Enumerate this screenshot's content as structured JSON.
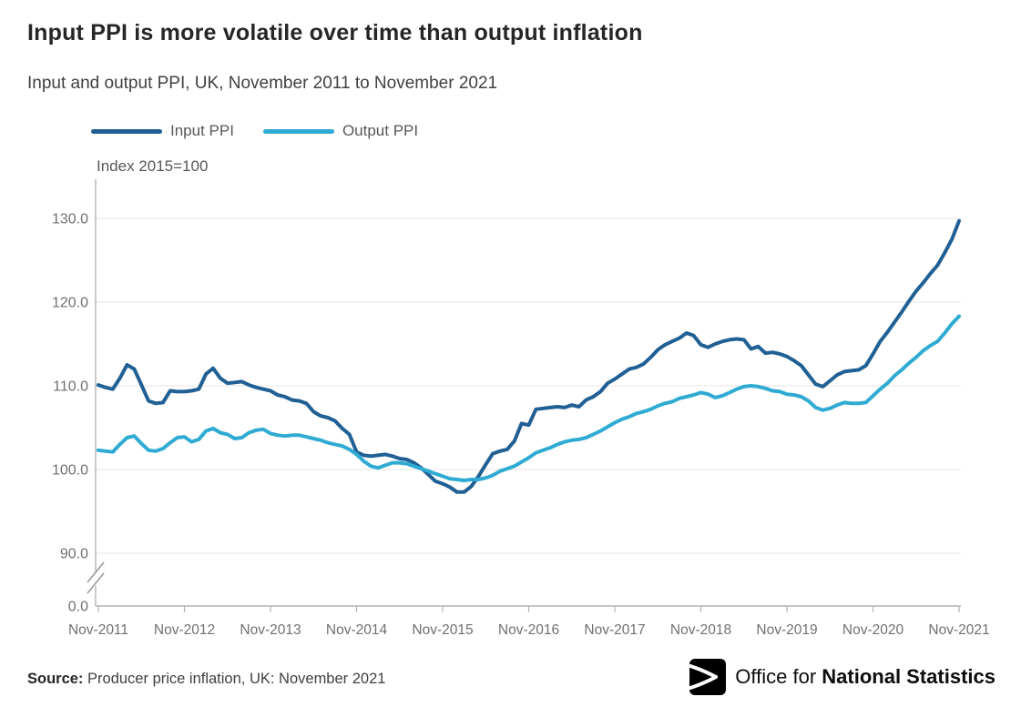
{
  "header": {
    "title": "Input PPI is more volatile over time than output inflation",
    "subtitle": "Input and output PPI, UK, November 2011 to November 2021"
  },
  "legend": {
    "items": [
      {
        "label": "Input PPI"
      },
      {
        "label": "Output PPI"
      }
    ]
  },
  "axis_note": "Index 2015=100",
  "chart_data": {
    "type": "line",
    "title": "Input PPI is more volatile over time than output inflation",
    "subtitle": "Input and output PPI, UK, November 2011 to November 2021",
    "unit_label": "Index 2015=100",
    "x_axis": {
      "start": "Nov-2011",
      "end": "Nov-2021",
      "frequency": "monthly",
      "points": 121,
      "ticks": [
        {
          "label": "Nov-2011",
          "month_index": 0
        },
        {
          "label": "Nov-2012",
          "month_index": 12
        },
        {
          "label": "Nov-2013",
          "month_index": 24
        },
        {
          "label": "Nov-2014",
          "month_index": 36
        },
        {
          "label": "Nov-2015",
          "month_index": 48
        },
        {
          "label": "Nov-2016",
          "month_index": 60
        },
        {
          "label": "Nov-2017",
          "month_index": 72
        },
        {
          "label": "Nov-2018",
          "month_index": 84
        },
        {
          "label": "Nov-2019",
          "month_index": 96
        },
        {
          "label": "Nov-2020",
          "month_index": 108
        },
        {
          "label": "Nov-2021",
          "month_index": 120
        }
      ]
    },
    "y_axis": {
      "ticks": [
        {
          "label": "130.0",
          "value": 130
        },
        {
          "label": "120.0",
          "value": 120
        },
        {
          "label": "110.0",
          "value": 110
        },
        {
          "label": "100.0",
          "value": 100
        },
        {
          "label": "90.0",
          "value": 90
        },
        {
          "label": "0.0",
          "value": 0
        }
      ],
      "gridline_values": [
        130,
        120,
        110,
        100,
        90
      ],
      "visible_range": [
        90,
        135
      ],
      "axis_break": true
    },
    "legend_position": "top-left",
    "grid": "horizontal-only",
    "series": [
      {
        "name": "Input PPI",
        "color": "#206095",
        "values": [
          110.1,
          109.8,
          109.6,
          110.9,
          112.5,
          112.0,
          110.1,
          108.2,
          107.9,
          108.0,
          109.4,
          109.3,
          109.3,
          109.4,
          109.6,
          111.4,
          112.1,
          110.9,
          110.3,
          110.4,
          110.5,
          110.1,
          109.8,
          109.6,
          109.4,
          108.9,
          108.7,
          108.3,
          108.2,
          107.9,
          106.9,
          106.4,
          106.2,
          105.8,
          104.9,
          104.2,
          102.1,
          101.7,
          101.6,
          101.7,
          101.8,
          101.6,
          101.3,
          101.2,
          100.8,
          100.2,
          99.4,
          98.6,
          98.3,
          97.9,
          97.3,
          97.3,
          98.0,
          99.2,
          100.6,
          101.9,
          102.2,
          102.4,
          103.4,
          105.5,
          105.3,
          107.2,
          107.3,
          107.4,
          107.5,
          107.4,
          107.7,
          107.5,
          108.3,
          108.7,
          109.3,
          110.3,
          110.8,
          111.4,
          112.0,
          112.2,
          112.6,
          113.4,
          114.3,
          114.9,
          115.3,
          115.7,
          116.3,
          116.0,
          114.9,
          114.6,
          115.0,
          115.3,
          115.5,
          115.6,
          115.5,
          114.4,
          114.7,
          113.9,
          114.0,
          113.8,
          113.5,
          113.0,
          112.4,
          111.3,
          110.2,
          109.9,
          110.6,
          111.3,
          111.7,
          111.8,
          111.9,
          112.4,
          113.8,
          115.3,
          116.4,
          117.6,
          118.8,
          120.1,
          121.3,
          122.3,
          123.4,
          124.4,
          125.9,
          127.5,
          129.7
        ]
      },
      {
        "name": "Output PPI",
        "color": "#2fabd3",
        "values": [
          102.3,
          102.2,
          102.1,
          103.0,
          103.8,
          104.0,
          103.1,
          102.3,
          102.2,
          102.5,
          103.2,
          103.8,
          103.9,
          103.3,
          103.6,
          104.6,
          104.9,
          104.4,
          104.2,
          103.7,
          103.8,
          104.4,
          104.7,
          104.8,
          104.3,
          104.1,
          104.0,
          104.1,
          104.1,
          103.9,
          103.7,
          103.5,
          103.2,
          103.0,
          102.8,
          102.4,
          101.8,
          101.0,
          100.4,
          100.2,
          100.5,
          100.8,
          100.8,
          100.7,
          100.4,
          100.1,
          99.8,
          99.5,
          99.2,
          98.9,
          98.8,
          98.7,
          98.8,
          98.8,
          99.0,
          99.3,
          99.8,
          100.1,
          100.4,
          100.9,
          101.4,
          102.0,
          102.3,
          102.6,
          103.0,
          103.3,
          103.5,
          103.6,
          103.8,
          104.2,
          104.6,
          105.1,
          105.6,
          106.0,
          106.3,
          106.7,
          106.9,
          107.2,
          107.6,
          107.9,
          108.1,
          108.5,
          108.7,
          108.9,
          109.2,
          109.0,
          108.6,
          108.8,
          109.2,
          109.6,
          109.9,
          110.0,
          109.9,
          109.7,
          109.4,
          109.3,
          109.0,
          108.9,
          108.7,
          108.2,
          107.4,
          107.1,
          107.3,
          107.7,
          108.0,
          107.9,
          107.9,
          108.0,
          108.8,
          109.6,
          110.3,
          111.2,
          111.9,
          112.7,
          113.4,
          114.2,
          114.8,
          115.3,
          116.3,
          117.4,
          118.3
        ]
      }
    ]
  },
  "colors": {
    "input_line": "#206095",
    "output_line": "#2fabd3",
    "gridline": "#e6e6e6",
    "axis": "#b3b3b3",
    "axis_break": "#9a9a9a",
    "tick_text": "#707071",
    "title_text": "#262626",
    "body_text": "#414042"
  },
  "source": {
    "label": "Source:",
    "text": "Producer price inflation, UK: November 2021"
  },
  "logo": {
    "prefix": "Office for",
    "suffix": "National Statistics"
  }
}
